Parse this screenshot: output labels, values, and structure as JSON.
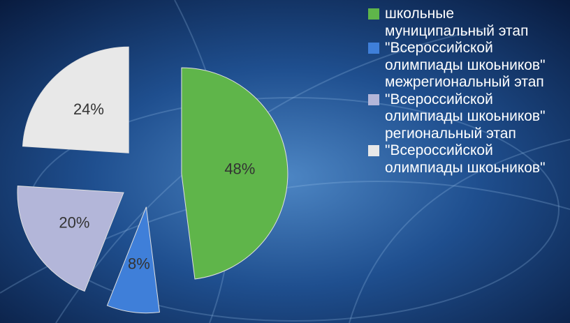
{
  "chart_data": {
    "type": "pie",
    "series": [
      {
        "name": "школьные",
        "color": "#5fb54a",
        "values": [
          48
        ],
        "value_labels": [
          "48%"
        ]
      },
      {
        "name": "муниципальный этап \"Всероссийской олимпиады шкоьников\"",
        "color": "#3f7fd9",
        "values": [
          8
        ],
        "value_labels": [
          "8%"
        ]
      },
      {
        "name": "межрегиональный этап \"Всероссийской олимпиады шкоьников\"",
        "color": "#b3b6d9",
        "values": [
          20
        ],
        "value_labels": [
          "20%"
        ]
      },
      {
        "name": "региональный этап \"Всероссийской олимпиады шкоьников\"",
        "color": "#e8e8e8",
        "values": [
          24
        ],
        "value_labels": [
          "24%"
        ]
      }
    ],
    "legend": "right"
  }
}
